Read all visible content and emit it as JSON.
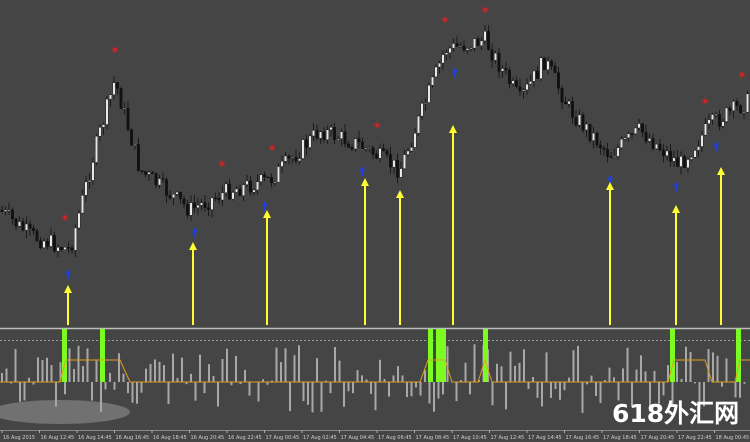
{
  "time_axis": {
    "labels": [
      "16 Aug 2015",
      "16 Aug 12:45",
      "16 Aug 14:45",
      "16 Aug 16:45",
      "16 Aug 18:45",
      "16 Aug 20:45",
      "16 Aug 22:45",
      "17 Aug 00:45",
      "17 Aug 02:45",
      "17 Aug 04:45",
      "17 Aug 06:45",
      "17 Aug 08:45",
      "17 Aug 10:45",
      "17 Aug 12:45",
      "17 Aug 14:45",
      "17 Aug 16:45",
      "17 Aug 18:45",
      "17 Aug 20:45",
      "17 Aug 22:45",
      "18 Aug 00:45"
    ]
  },
  "watermark": "618外汇网"
}
